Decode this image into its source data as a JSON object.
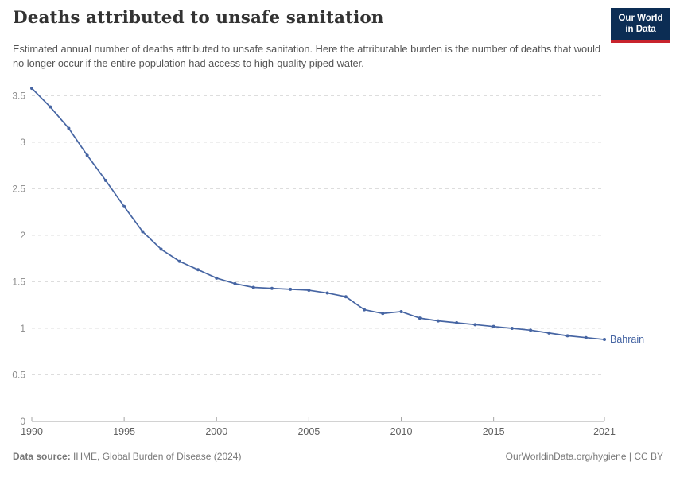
{
  "header": {
    "title": "Deaths attributed to unsafe sanitation",
    "subtitle": "Estimated annual number of deaths attributed to unsafe sanitation. Here the attributable burden is the number of deaths that would no longer occur if the entire population had access to high-quality piped water."
  },
  "logo": {
    "line1": "Our World",
    "line2": "in Data",
    "bg_color": "#0c2d54",
    "stripe_color": "#c8232d"
  },
  "chart_data": {
    "type": "line",
    "title": "Deaths attributed to unsafe sanitation",
    "x": [
      1990,
      1991,
      1992,
      1993,
      1994,
      1995,
      1996,
      1997,
      1998,
      1999,
      2000,
      2001,
      2002,
      2003,
      2004,
      2005,
      2006,
      2007,
      2008,
      2009,
      2010,
      2011,
      2012,
      2013,
      2014,
      2015,
      2016,
      2017,
      2018,
      2019,
      2020,
      2021
    ],
    "series": [
      {
        "name": "Bahrain",
        "color": "#4665a3",
        "values": [
          3.58,
          3.38,
          3.15,
          2.86,
          2.59,
          2.31,
          2.04,
          1.85,
          1.72,
          1.63,
          1.54,
          1.48,
          1.44,
          1.43,
          1.42,
          1.41,
          1.38,
          1.34,
          1.2,
          1.16,
          1.18,
          1.11,
          1.08,
          1.06,
          1.04,
          1.02,
          1.0,
          0.98,
          0.95,
          0.92,
          0.9,
          0.88
        ]
      }
    ],
    "xticks": [
      1990,
      1995,
      2000,
      2005,
      2010,
      2015,
      2021
    ],
    "yticks": [
      0,
      0.5,
      1,
      1.5,
      2,
      2.5,
      3,
      3.5
    ],
    "xlim": [
      1990,
      2021
    ],
    "ylim": [
      0,
      3.69
    ],
    "grid": true,
    "legend_position": "end-of-line",
    "gridline_color": "#dddddd",
    "axis_color": "#a5a5a5",
    "ytick_label_color": "#8b8b8b",
    "xtick_label_color": "#606060"
  },
  "footer": {
    "source_label": "Data source:",
    "source_text": " IHME, Global Burden of Disease (2024)",
    "link_text": "OurWorldinData.org/hygiene | CC BY"
  }
}
